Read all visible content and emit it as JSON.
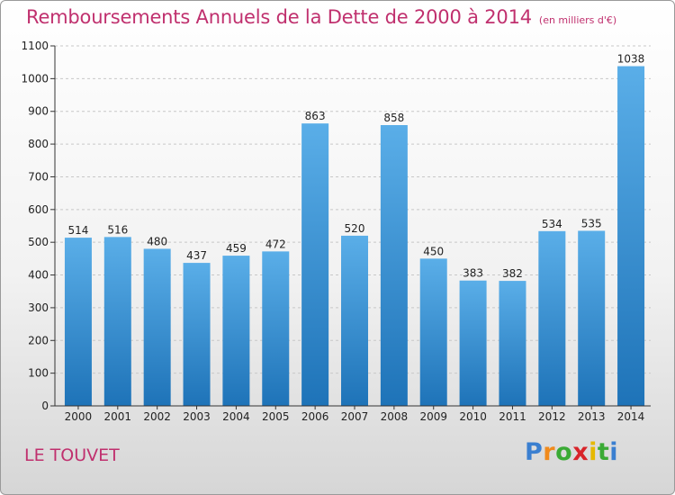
{
  "header": {
    "title": "Remboursements Annuels de la Dette de 2000 à 2014",
    "unit": "(en milliers d'€)"
  },
  "footer": {
    "town": "LE TOUVET",
    "logo": [
      "P",
      "r",
      "o",
      "x",
      "i",
      "t",
      "i"
    ],
    "logo_colors": [
      "#3a7fd0",
      "#f08a1c",
      "#3aaa35",
      "#d8242a",
      "#e6b800",
      "#3aaa35",
      "#3a7fd0"
    ]
  },
  "colors": {
    "title": "#c0306e",
    "bar_light": "#5aaee8",
    "bar_dark": "#1e73b8",
    "grid": "#c8c8c8"
  },
  "chart_data": {
    "type": "bar",
    "title": "Remboursements Annuels de la Dette de 2000 à 2014",
    "xlabel": "",
    "ylabel": "",
    "categories": [
      "2000",
      "2001",
      "2002",
      "2003",
      "2004",
      "2005",
      "2006",
      "2007",
      "2008",
      "2009",
      "2010",
      "2011",
      "2012",
      "2013",
      "2014"
    ],
    "values": [
      514,
      516,
      480,
      437,
      459,
      472,
      863,
      520,
      858,
      450,
      383,
      382,
      534,
      535,
      1038
    ],
    "ylim": [
      0,
      1100
    ],
    "yticks": [
      0,
      100,
      200,
      300,
      400,
      500,
      600,
      700,
      800,
      900,
      1000,
      1100
    ],
    "grid": true,
    "legend": "none"
  }
}
